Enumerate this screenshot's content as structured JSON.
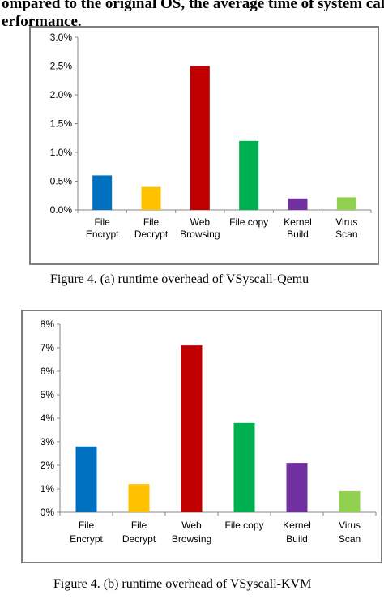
{
  "page": {
    "top_text": "ompared to the original OS, the average time of system call is\nerformance."
  },
  "captions": [
    "Figure 4.    (a) runtime overhead of VSyscall-Qemu",
    "Figure 4.    (b) runtime overhead of VSyscall-KVM"
  ],
  "chart_data": [
    {
      "type": "bar",
      "categories": [
        [
          "File",
          "Encrypt"
        ],
        [
          "File",
          "Decrypt"
        ],
        [
          "Web",
          "Browsing"
        ],
        [
          "File copy"
        ],
        [
          "Kernel",
          "Build"
        ],
        [
          "Virus",
          "Scan"
        ]
      ],
      "values": [
        0.6,
        0.4,
        2.5,
        1.2,
        0.2,
        0.22
      ],
      "colors": [
        "#0070C0",
        "#FFC000",
        "#C00000",
        "#00B050",
        "#7030A0",
        "#92D050"
      ],
      "ylim": [
        0,
        3.0
      ],
      "yticks": [
        0,
        0.5,
        1.0,
        1.5,
        2.0,
        2.5,
        3.0
      ],
      "ytick_labels": [
        "0.0%",
        "0.5%",
        "1.0%",
        "1.5%",
        "2.0%",
        "2.5%",
        "3.0%"
      ],
      "grid": false,
      "title": "",
      "xlabel": "",
      "ylabel": ""
    },
    {
      "type": "bar",
      "categories": [
        [
          "File",
          "Encrypt"
        ],
        [
          "File",
          "Decrypt"
        ],
        [
          "Web",
          "Browsing"
        ],
        [
          "File copy"
        ],
        [
          "Kernel",
          "Build"
        ],
        [
          "Virus",
          "Scan"
        ]
      ],
      "values": [
        2.8,
        1.2,
        7.1,
        3.8,
        2.1,
        0.9
      ],
      "colors": [
        "#0070C0",
        "#FFC000",
        "#C00000",
        "#00B050",
        "#7030A0",
        "#92D050"
      ],
      "ylim": [
        0,
        8
      ],
      "yticks": [
        0,
        1,
        2,
        3,
        4,
        5,
        6,
        7,
        8
      ],
      "ytick_labels": [
        "0%",
        "1%",
        "2%",
        "3%",
        "4%",
        "5%",
        "6%",
        "7%",
        "8%"
      ],
      "grid": false,
      "title": "",
      "xlabel": "",
      "ylabel": ""
    }
  ]
}
